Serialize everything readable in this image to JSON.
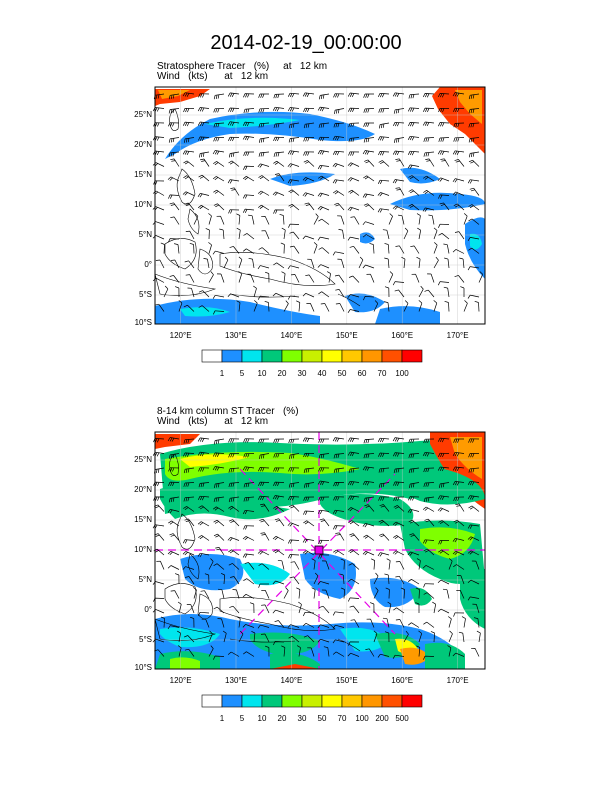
{
  "title": "2014-02-19_00:00:00",
  "panels": [
    {
      "subtitle_line1": "Stratosphere Tracer   (%)     at   12 km",
      "subtitle_line2": "Wind   (kts)      at   12 km",
      "lat_labels": [
        "25°N",
        "20°N",
        "15°N",
        "10°N",
        "5°N",
        "0°",
        "5°S",
        "10°S"
      ],
      "lon_labels": [
        "120°E",
        "130°E",
        "140°E",
        "150°E",
        "160°E",
        "170°E"
      ],
      "colorbar": {
        "labels": [
          "1",
          "5",
          "10",
          "20",
          "30",
          "40",
          "50",
          "60",
          "70",
          "100"
        ],
        "colors": [
          "#ffffff",
          "#1e90ff",
          "#00e5ee",
          "#00c87a",
          "#7fff00",
          "#c8f000",
          "#ffff00",
          "#ffc800",
          "#ff9600",
          "#ff5000",
          "#ff0000"
        ]
      }
    },
    {
      "subtitle_line1": "8-14 km column ST Tracer   (%)",
      "subtitle_line2": "Wind   (kts)      at   12 km",
      "lat_labels": [
        "25°N",
        "20°N",
        "15°N",
        "10°N",
        "5°N",
        "0°",
        "5°S",
        "10°S"
      ],
      "lon_labels": [
        "120°E",
        "130°E",
        "140°E",
        "150°E",
        "160°E",
        "170°E"
      ],
      "colorbar": {
        "labels": [
          "1",
          "5",
          "10",
          "20",
          "30",
          "50",
          "70",
          "100",
          "200",
          "500"
        ],
        "colors": [
          "#ffffff",
          "#1e90ff",
          "#00e5ee",
          "#00c87a",
          "#7fff00",
          "#c8f000",
          "#ffff00",
          "#ffc800",
          "#ff9600",
          "#ff5000",
          "#ff0000"
        ]
      }
    }
  ]
}
